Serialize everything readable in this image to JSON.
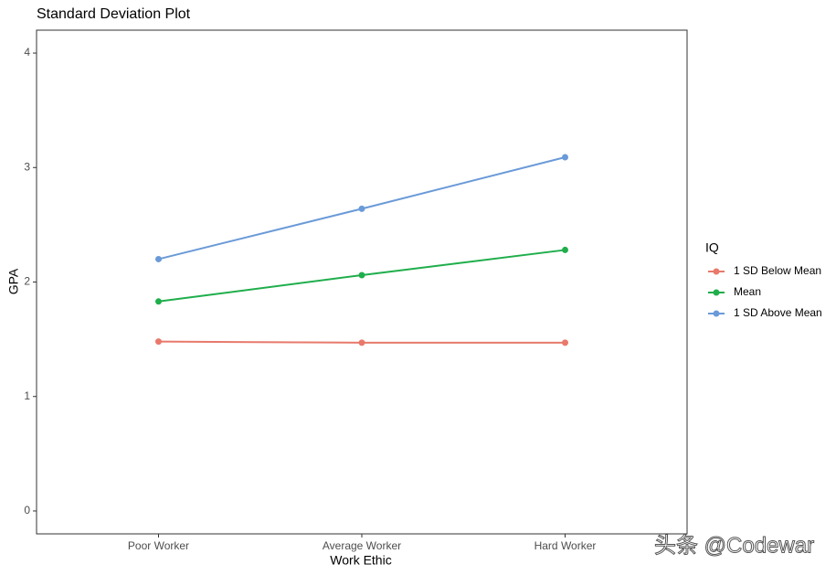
{
  "chart_data": {
    "type": "line",
    "title": "Standard Deviation Plot",
    "x_label": "Work Ethic",
    "y_label": "GPA",
    "categories": [
      "Poor Worker",
      "Average Worker",
      "Hard Worker"
    ],
    "legend_title": "IQ",
    "legend_position": "right",
    "series": [
      {
        "name": "1 SD Below Mean",
        "color": "#e8796b",
        "values": [
          1.48,
          1.47,
          1.47
        ]
      },
      {
        "name": "Mean",
        "color": "#1fae4b",
        "values": [
          1.83,
          2.06,
          2.28
        ]
      },
      {
        "name": "1 SD Above Mean",
        "color": "#6a9ad8",
        "values": [
          2.2,
          2.64,
          3.09
        ]
      }
    ],
    "ylim": [
      -0.2,
      4.2
    ],
    "yticks": [
      0,
      1,
      2,
      3,
      4
    ],
    "grid": false,
    "watermark": "头条 @Codewar"
  }
}
